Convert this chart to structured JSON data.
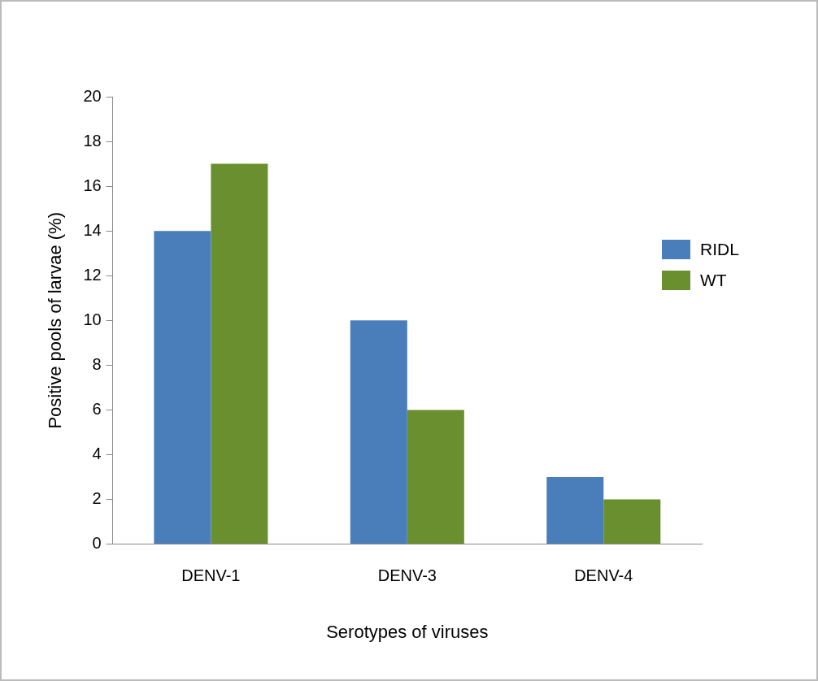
{
  "chart_data": {
    "type": "bar",
    "xlabel": "Serotypes of viruses",
    "ylabel": "Positive pools of larvae (%)",
    "categories": [
      "DENV-1",
      "DENV-3",
      "DENV-4"
    ],
    "series": [
      {
        "name": "RIDL",
        "color": "#4a7ebb",
        "values": [
          14,
          10,
          3
        ]
      },
      {
        "name": "WT",
        "color": "#6a8f2e",
        "values": [
          17,
          6,
          2
        ]
      }
    ],
    "ylim": [
      0,
      20
    ],
    "yticks": [
      0,
      2,
      4,
      6,
      8,
      10,
      12,
      14,
      16,
      18,
      20
    ],
    "grid": false,
    "legend": "right"
  }
}
